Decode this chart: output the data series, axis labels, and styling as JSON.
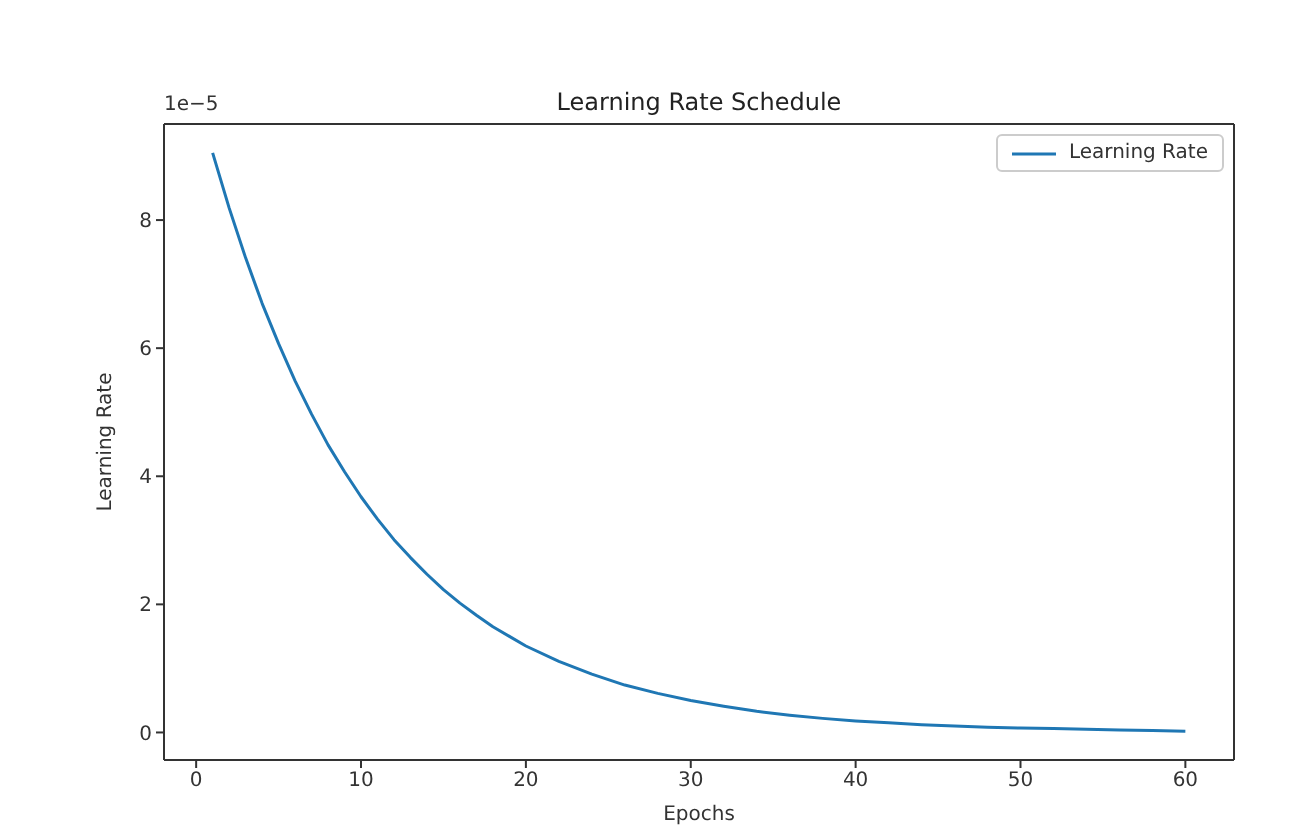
{
  "chart_data": {
    "type": "line",
    "title": "Learning Rate Schedule",
    "xlabel": "Epochs",
    "ylabel": "Learning Rate",
    "annotations": [
      "1e−5"
    ],
    "x": [
      1,
      2,
      3,
      4,
      5,
      6,
      7,
      8,
      9,
      10,
      11,
      12,
      13,
      14,
      15,
      16,
      17,
      18,
      19,
      20,
      22,
      24,
      26,
      28,
      30,
      32,
      34,
      36,
      38,
      40,
      42,
      44,
      46,
      48,
      50,
      52,
      54,
      56,
      58,
      60
    ],
    "series": [
      {
        "name": "Learning Rate",
        "color": "#1f77b4",
        "values": [
          9.05,
          8.19,
          7.41,
          6.7,
          6.07,
          5.49,
          4.97,
          4.49,
          4.07,
          3.68,
          3.33,
          3.01,
          2.73,
          2.47,
          2.23,
          2.02,
          1.83,
          1.65,
          1.5,
          1.35,
          1.11,
          0.91,
          0.74,
          0.61,
          0.5,
          0.41,
          0.33,
          0.27,
          0.22,
          0.18,
          0.15,
          0.12,
          0.1,
          0.08,
          0.07,
          0.06,
          0.05,
          0.04,
          0.03,
          0.02
        ]
      }
    ],
    "xlim": [
      -1.95,
      62.95
    ],
    "xticks": [
      0,
      10,
      20,
      30,
      40,
      50,
      60
    ],
    "ylim": [
      -0.43,
      9.5
    ],
    "yticks": [
      0,
      2,
      4,
      6,
      8
    ],
    "legend": "top right",
    "grid": false,
    "marker": "none",
    "line_style": "solid"
  }
}
